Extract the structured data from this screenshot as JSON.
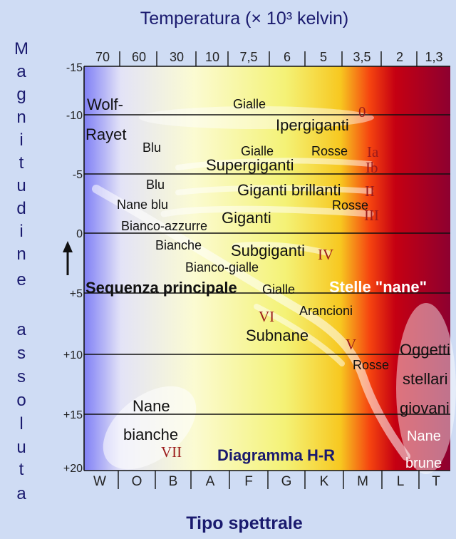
{
  "header": {
    "temperature_title": "Temperatura (× 10³ kelvin)"
  },
  "y_axis": {
    "title_letters_top": [
      "M",
      "a",
      "g",
      "n",
      "i",
      "t",
      "u",
      "d",
      "i",
      "n",
      "e"
    ],
    "title_letters_bottom": [
      "a",
      "s",
      "s",
      "o",
      "l",
      "u",
      "t",
      "a"
    ],
    "ticks": [
      "-15",
      "-10",
      "-5",
      "0",
      "+5",
      "+10",
      "+15",
      "+20"
    ]
  },
  "top_axis": {
    "ticks": [
      "70",
      "60",
      "30",
      "10",
      "7,5",
      "6",
      "5",
      "3,5",
      "2",
      "1,3"
    ]
  },
  "bottom_axis": {
    "title": "Tipo spettrale",
    "ticks": [
      "W",
      "O",
      "B",
      "A",
      "F",
      "G",
      "K",
      "M",
      "L",
      "T"
    ]
  },
  "labels": {
    "wolf": "Wolf-",
    "rayet": "Rayet",
    "blu1": "Blu",
    "blu2": "Blu",
    "nane_blu": "Nane blu",
    "bianco_azzurre": "Bianco-azzurre",
    "bianche": "Bianche",
    "bianco_gialle": "Bianco-gialle",
    "gialle_top": "Gialle",
    "ipergiganti": "Ipergiganti",
    "gialle2": "Gialle",
    "rosse1": "Rosse",
    "supergiganti": "Supergiganti",
    "giganti_brillanti": "Giganti brillanti",
    "rosse2": "Rosse",
    "giganti": "Giganti",
    "subgiganti": "Subgiganti",
    "sequenza_principale": "Sequenza principale",
    "gialle3": "Gialle",
    "stelle_nane": "Stelle \"nane\"",
    "arancioni": "Arancioni",
    "subnane": "Subnane",
    "rosse3": "Rosse",
    "oggetti1": "Oggetti",
    "oggetti2": "stellari",
    "oggetti3": "giovani",
    "nane_brune1": "Nane",
    "nane_brune2": "brune",
    "nane_bianche1": "Nane",
    "nane_bianche2": "bianche",
    "diagramma": "Diagramma H-R"
  },
  "roman": {
    "O": "0",
    "Ia": "Ia",
    "Ib": "Ib",
    "II": "II",
    "III": "III",
    "IV": "IV",
    "V": "V",
    "VI": "VI",
    "VII": "VII"
  },
  "colors": {
    "gradient": [
      "#7f7ff5",
      "#e3e3f7",
      "#fbfbd2",
      "#f4f276",
      "#f7c820",
      "#f54410",
      "#c50012",
      "#8d0030"
    ],
    "title": "#1a1a6e",
    "roman": "#9b1b1b"
  }
}
